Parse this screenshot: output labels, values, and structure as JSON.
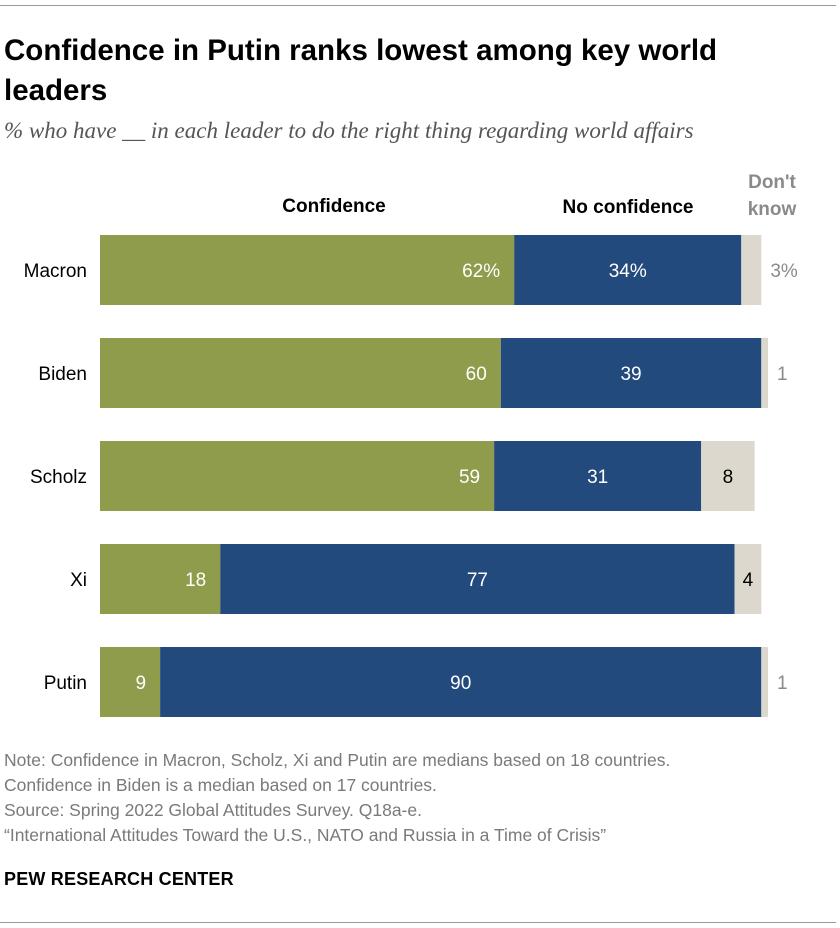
{
  "title": "Confidence in Putin ranks lowest among key world leaders",
  "subtitle": "% who have __ in each leader to do the right thing regarding world affairs",
  "chart_data": {
    "type": "bar",
    "orientation": "horizontal",
    "stacked": true,
    "categories": [
      "Macron",
      "Biden",
      "Scholz",
      "Xi",
      "Putin"
    ],
    "series": [
      {
        "name": "Confidence",
        "color": "#8f9c4b",
        "values": [
          62,
          60,
          59,
          18,
          9
        ],
        "labels": [
          "62%",
          "60",
          "59",
          "18",
          "9"
        ]
      },
      {
        "name": "No confidence",
        "color": "#234a7c",
        "values": [
          34,
          39,
          31,
          77,
          90
        ],
        "labels": [
          "34%",
          "39",
          "31",
          "77",
          "90"
        ]
      },
      {
        "name": "Don't know",
        "color": "#dcd8cd",
        "values": [
          3,
          1,
          8,
          4,
          1
        ],
        "labels": [
          "3%",
          "1",
          "8",
          "4",
          "1"
        ]
      }
    ],
    "legend_lines": [
      "Confidence",
      "No confidence",
      "Don't",
      "know"
    ],
    "xlim": [
      0,
      100
    ]
  },
  "notes": [
    "Note: Confidence in Macron, Scholz, Xi and Putin are medians based on 18 countries.",
    "Confidence in Biden is a median based on 17 countries.",
    "Source: Spring 2022 Global Attitudes Survey. Q18a-e.",
    "“International Attitudes Toward the U.S., NATO and Russia in a Time of Crisis”"
  ],
  "source_org": "PEW RESEARCH CENTER"
}
